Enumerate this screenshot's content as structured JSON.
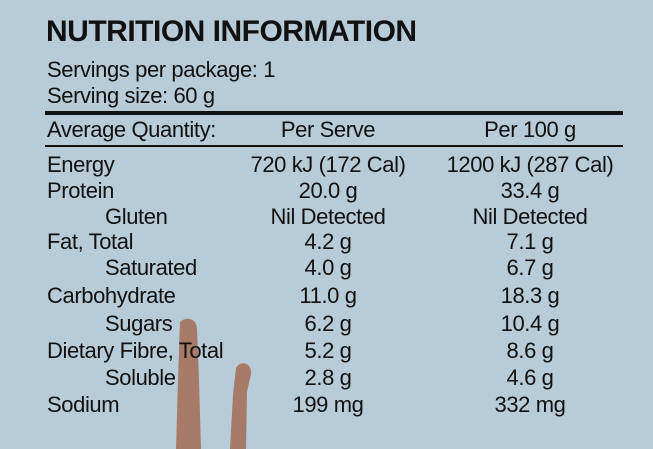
{
  "header": {
    "title": "NUTRITION INFORMATION",
    "servings": "Servings per package: 1",
    "serving_size": "Serving size: 60 g"
  },
  "table": {
    "columns": [
      "Average Quantity:",
      "Per Serve",
      "Per 100 g"
    ],
    "rows": [
      [
        "Energy",
        "720 kJ (172 Cal)",
        "1200 kJ (287 Cal)"
      ],
      [
        "Protein",
        "20.0 g",
        "33.4 g"
      ],
      [
        "Gluten",
        "Nil Detected",
        "Nil Detected"
      ],
      [
        "Fat, Total",
        "4.2 g",
        "7.1 g"
      ],
      [
        "Saturated",
        "4.0 g",
        "6.7 g"
      ],
      [
        "Carbohydrate",
        "11.0 g",
        "18.3 g"
      ],
      [
        "Sugars",
        "6.2 g",
        "10.4 g"
      ],
      [
        "Dietary Fibre, Total",
        "5.2 g",
        "8.6 g"
      ],
      [
        "Soluble",
        "2.8 g",
        "4.6 g"
      ],
      [
        "Sodium",
        "199 mg",
        "332 mg"
      ]
    ]
  }
}
